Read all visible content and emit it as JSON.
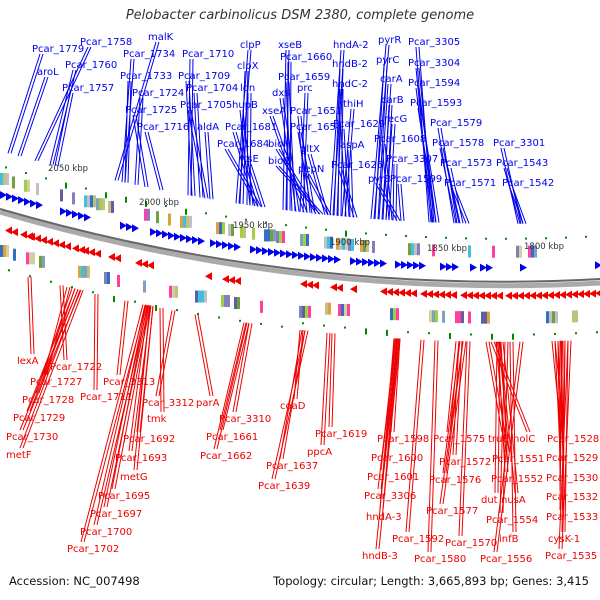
{
  "title": "Pelobacter carbinolicus DSM 2380, complete genome",
  "footer": {
    "accession": "Accession: NC_007498",
    "topology": "Topology: circular; Length: 3,665,893 bp; Genes: 3,415"
  },
  "colors": {
    "forward": "#0000ee",
    "reverse": "#ee0000",
    "backbone": "#888888",
    "marker": "#008800"
  },
  "ticks": [
    "2050 kbp",
    "2000 kbp",
    "1950 kbp",
    "1900 kbp",
    "1850 kbp",
    "1800 kbp"
  ],
  "forward_labels": [
    "Pcar_1779",
    "aroL",
    "Pcar_1758",
    "Pcar_1760",
    "Pcar_1757",
    "malK",
    "Pcar_1734",
    "Pcar_1733",
    "Pcar_1724",
    "Pcar_1725",
    "Pcar_1716",
    "Pcar_1710",
    "Pcar_1709",
    "Pcar_1704",
    "Pcar_1705",
    "aldA",
    "clpP",
    "clpX",
    "lon",
    "hupB",
    "Pcar_1681",
    "Pcar_1684",
    "ftsE",
    "xseB",
    "Pcar_1660",
    "Pcar_1659",
    "dxs",
    "prc",
    "xseA",
    "Pcar_1651",
    "Pcar_1654",
    "bioH",
    "bioC",
    "gltX",
    "pepN",
    "hndA-2",
    "hndB-2",
    "hndC-2",
    "thiH",
    "Pcar_1629",
    "aspA",
    "Pcar_1626",
    "pyrR",
    "pyrC",
    "carA",
    "carB",
    "recG",
    "Pcar_1608",
    "Pcar_3307",
    "pyrB",
    "Pcar_1599",
    "Pcar_3305",
    "Pcar_3304",
    "Pcar_1594",
    "Pcar_1593",
    "Pcar_1579",
    "Pcar_1578",
    "Pcar_1573",
    "Pcar_1571",
    "Pcar_3301",
    "Pcar_1543",
    "Pcar_1542"
  ],
  "reverse_labels": [
    "lexA",
    "Pcar_1722",
    "Pcar_1727",
    "Pcar_1728",
    "Pcar_1729",
    "Pcar_1730",
    "metF",
    "Pcar_1711",
    "Pcar_3313",
    "Pcar_3312",
    "parA",
    "tmk",
    "Pcar_1692",
    "Pcar_1693",
    "metG",
    "Pcar_1695",
    "Pcar_1697",
    "Pcar_1700",
    "Pcar_1702",
    "Pcar_3310",
    "Pcar_1661",
    "Pcar_1662",
    "coaD",
    "Pcar_1637",
    "Pcar_1639",
    "Pcar_1619",
    "ppcA",
    "Pcar_1598",
    "Pcar_1600",
    "Pcar_1601",
    "Pcar_3306",
    "hndA-3",
    "hndB-3",
    "Pcar_1592",
    "Pcar_1580",
    "Pcar_1575",
    "Pcar_1572",
    "Pcar_1576",
    "Pcar_1577",
    "Pcar_1570",
    "truB",
    "holC",
    "Pcar_1551",
    "Pcar_1552",
    "dut",
    "nusA",
    "Pcar_1554",
    "infB",
    "Pcar_1556",
    "Pcar_1528",
    "Pcar_1529",
    "Pcar_1530",
    "Pcar_1532",
    "Pcar_1533",
    "cysK-1",
    "Pcar_1535"
  ]
}
